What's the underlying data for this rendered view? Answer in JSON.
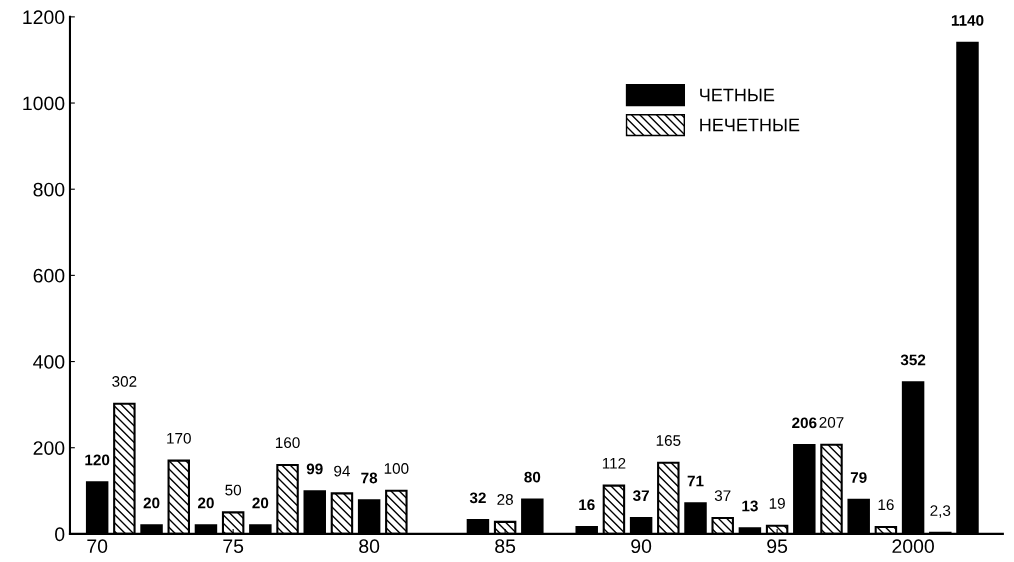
{
  "chart_data": {
    "type": "bar",
    "series": [
      {
        "name": "ЧЕТНЫЕ",
        "color": "#000000",
        "x": [
          1970,
          1972,
          1974,
          1976,
          1978,
          1980,
          1984,
          1986,
          1988,
          1990,
          1992,
          1994,
          1996,
          1998,
          2000,
          2002
        ],
        "values": [
          120,
          20,
          20,
          20,
          99,
          78,
          32,
          80,
          16,
          37,
          71,
          13,
          206,
          79,
          352,
          1140
        ],
        "value_labels": [
          "120",
          "20",
          "20",
          "20",
          "99",
          "78",
          "32",
          "80",
          "16",
          "37",
          "71",
          "13",
          "206",
          "79",
          "352",
          "1140"
        ]
      },
      {
        "name": "НЕЧЕТНЫЕ",
        "color": "#000000",
        "x": [
          1971,
          1973,
          1975,
          1977,
          1979,
          1981,
          1985,
          1989,
          1991,
          1993,
          1995,
          1997,
          1999,
          2001
        ],
        "values": [
          302,
          170,
          50,
          160,
          94,
          100,
          28,
          112,
          165,
          37,
          19,
          207,
          16,
          2.3
        ],
        "value_labels": [
          "302",
          "170",
          "50",
          "160",
          "94",
          "100",
          "28",
          "112",
          "165",
          "37",
          "19",
          "207",
          "16",
          "2,3"
        ]
      }
    ],
    "xlim": [
      1969,
      2003.3
    ],
    "xticks": [
      {
        "value": 1970,
        "label": "70"
      },
      {
        "value": 1975,
        "label": "75"
      },
      {
        "value": 1980,
        "label": "80"
      },
      {
        "value": 1985,
        "label": "85"
      },
      {
        "value": 1990,
        "label": "90"
      },
      {
        "value": 1995,
        "label": "95"
      },
      2000
    ],
    "ylim": [
      0,
      1200
    ],
    "yticks": [
      0,
      200,
      400,
      600,
      800,
      1000,
      1200
    ],
    "grid": false,
    "legend": "top right"
  }
}
